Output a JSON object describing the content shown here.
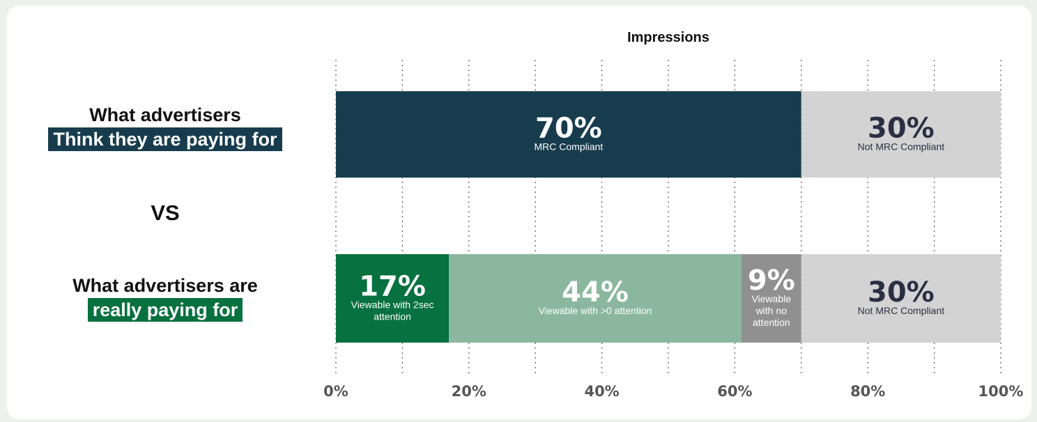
{
  "labels": {
    "top_line1": "What advertisers",
    "top_line2": "Think they are paying for",
    "vs": "VS",
    "bottom_line1": "What advertisers are",
    "bottom_line2": "really paying for"
  },
  "colors": {
    "dark_teal": "#173c4d",
    "dark_green": "#07713f",
    "light_green": "#8ab79e",
    "gray": "#909090",
    "light_gray": "#d3d3d3"
  },
  "chart_data": {
    "type": "bar",
    "orientation": "horizontal",
    "stacked": true,
    "title": "Impressions",
    "xlim": [
      0,
      100
    ],
    "x_ticks": [
      "0%",
      "20%",
      "40%",
      "60%",
      "80%",
      "100%"
    ],
    "grid": "dotted vertical every 10%",
    "rows": [
      {
        "segments": [
          {
            "value": 70,
            "label": "70%",
            "sublabel": "MRC Compliant",
            "color": "#173c4d",
            "text_color": "#ffffff"
          },
          {
            "value": 30,
            "label": "30%",
            "sublabel": "Not MRC Compliant",
            "color": "#d3d3d3",
            "text_color": "#2b2f44"
          }
        ]
      },
      {
        "segments": [
          {
            "value": 17,
            "label": "17%",
            "sublabel": "Viewable with 2sec attention",
            "sublabel_lines": [
              "Viewable with 2sec",
              "attention"
            ],
            "color": "#07713f",
            "text_color": "#ffffff"
          },
          {
            "value": 44,
            "label": "44%",
            "sublabel": "Viewable with >0 attention",
            "sublabel_lines": [
              "Viewable with >0 attention"
            ],
            "color": "#8ab79e",
            "text_color": "#ffffff"
          },
          {
            "value": 9,
            "label": "9%",
            "sublabel": "Viewable with no attention",
            "sublabel_lines": [
              "Viewable",
              "with no",
              "attention"
            ],
            "color": "#909090",
            "text_color": "#ffffff"
          },
          {
            "value": 30,
            "label": "30%",
            "sublabel": "Not MRC Compliant",
            "sublabel_lines": [
              "Not MRC Compliant"
            ],
            "color": "#d3d3d3",
            "text_color": "#2b2f44"
          }
        ]
      }
    ]
  }
}
